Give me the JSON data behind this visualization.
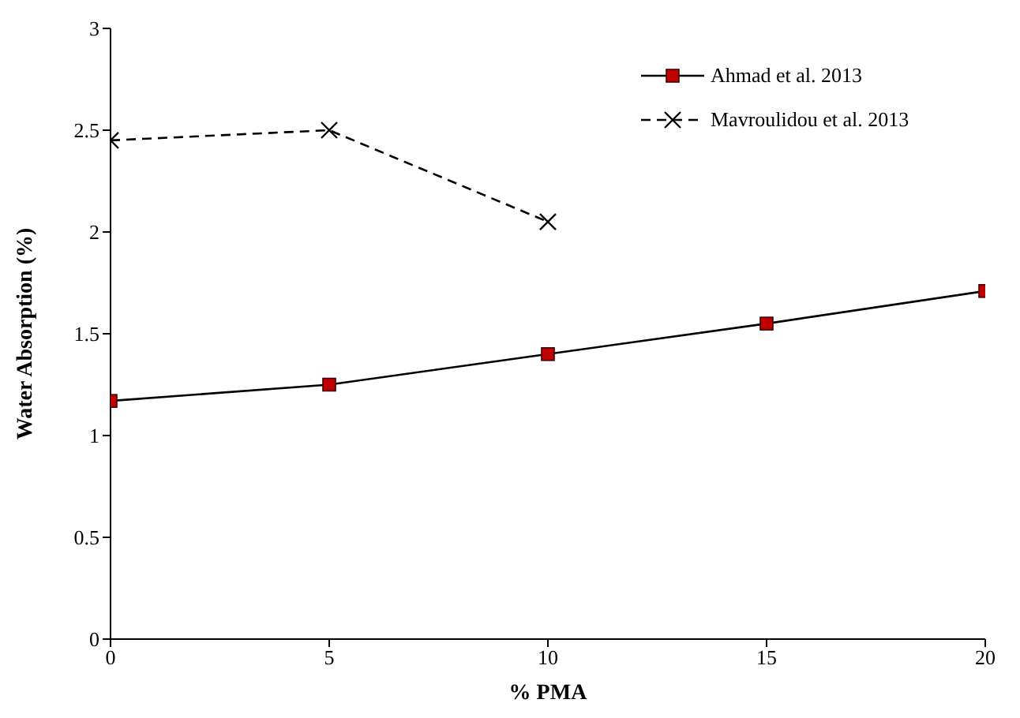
{
  "chart_data": {
    "type": "line",
    "xlabel": "% PMA",
    "ylabel": "Water Absorption (%)",
    "series": [
      {
        "name": "Ahmad et al. 2013",
        "color": "#c00000",
        "marker": "square",
        "line_style": "solid",
        "x": [
          0,
          5,
          10,
          15,
          20
        ],
        "values": [
          1.17,
          1.25,
          1.4,
          1.55,
          1.71
        ]
      },
      {
        "name": "Mavroulidou et al. 2013",
        "color": "#000000",
        "marker": "cross",
        "line_style": "dashed",
        "x": [
          0,
          5,
          10
        ],
        "values": [
          2.45,
          2.5,
          2.05
        ]
      }
    ],
    "xlim": [
      0,
      20
    ],
    "xticks": [
      0,
      5,
      10,
      15,
      20
    ],
    "ylim": [
      0,
      3
    ],
    "yticks": [
      0,
      0.5,
      1,
      1.5,
      2,
      2.5,
      3
    ],
    "grid": false,
    "legend": "top right"
  }
}
